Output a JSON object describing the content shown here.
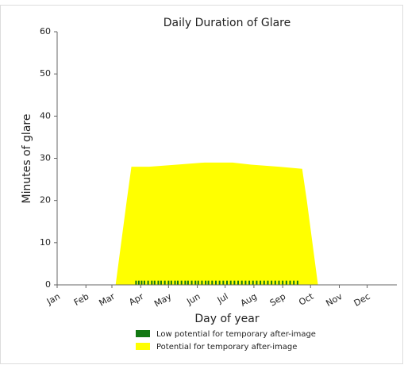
{
  "chart_data": {
    "type": "area",
    "title": "Daily Duration of Glare",
    "xlabel": "Day of year",
    "ylabel": "Minutes of glare",
    "xlim": [
      1,
      367
    ],
    "xticks": [
      {
        "value": 1,
        "label": "Jan"
      },
      {
        "value": 32,
        "label": "Feb"
      },
      {
        "value": 60,
        "label": "Mar"
      },
      {
        "value": 91,
        "label": "Apr"
      },
      {
        "value": 121,
        "label": "May"
      },
      {
        "value": 152,
        "label": "Jun"
      },
      {
        "value": 182,
        "label": "Jul"
      },
      {
        "value": 213,
        "label": "Aug"
      },
      {
        "value": 244,
        "label": "Sep"
      },
      {
        "value": 274,
        "label": "Oct"
      },
      {
        "value": 305,
        "label": "Nov"
      },
      {
        "value": 335,
        "label": "Dec"
      }
    ],
    "ylim": [
      0,
      60
    ],
    "yticks": [
      0,
      10,
      20,
      30,
      40,
      50,
      60
    ],
    "series": [
      {
        "name": "Low potential for temporary after-image",
        "color": "#127812",
        "kind": "bar",
        "x": [
          86,
          89,
          92,
          95,
          99,
          103,
          106,
          110,
          113,
          117,
          121,
          124,
          128,
          131,
          135,
          139,
          142,
          146,
          150,
          153,
          157,
          161,
          164,
          168,
          172,
          176,
          180,
          184,
          188,
          192,
          196,
          200,
          204,
          208,
          212,
          216,
          220,
          224,
          228,
          232,
          236,
          240,
          244,
          248,
          252,
          256,
          260
        ],
        "values": [
          1,
          1,
          1,
          1,
          1,
          1,
          1,
          1,
          1,
          1,
          1,
          1,
          1,
          1,
          1,
          1,
          1,
          1,
          1,
          1,
          1,
          1,
          1,
          1,
          1,
          1,
          1,
          1,
          1,
          1,
          1,
          1,
          1,
          1,
          1,
          1,
          1,
          1,
          1,
          1,
          1,
          1,
          1,
          1,
          1,
          1,
          1
        ]
      },
      {
        "name": "Potential for temporary after-image",
        "color": "#ffff00",
        "kind": "area",
        "x": [
          64,
          70,
          76,
          81,
          100,
          130,
          160,
          190,
          210,
          240,
          265,
          270,
          276,
          282
        ],
        "values": [
          0,
          10,
          20,
          28,
          28,
          28.5,
          29,
          29,
          28.5,
          28,
          27.5,
          20,
          10,
          0
        ]
      }
    ]
  }
}
